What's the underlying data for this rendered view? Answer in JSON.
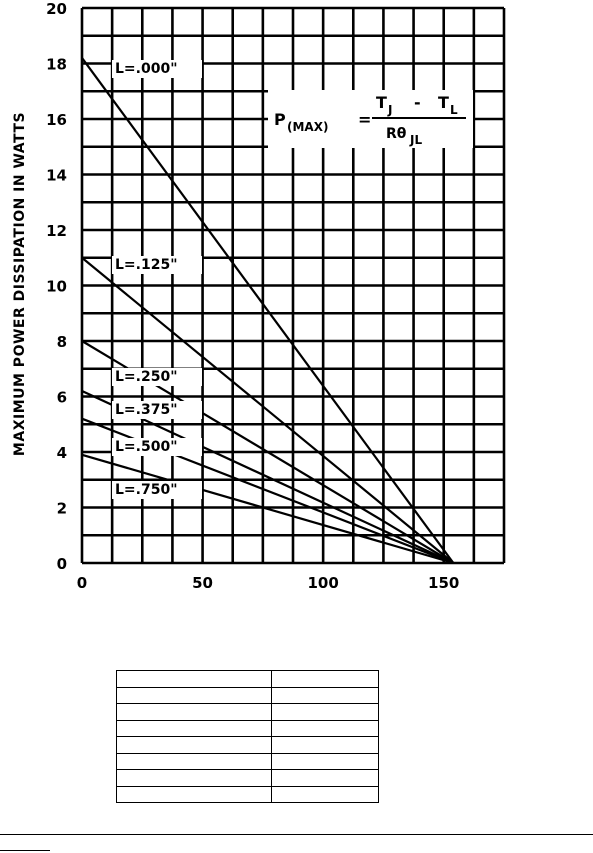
{
  "chart_data": {
    "type": "line",
    "title": "",
    "xlabel": "",
    "ylabel": "MAXIMUM POWER DISSIPATION IN WATTS",
    "xlim": [
      0,
      175
    ],
    "ylim": [
      0,
      20
    ],
    "x_ticks": [
      "0",
      "50",
      "100",
      "150"
    ],
    "y_ticks": [
      "0",
      "2",
      "4",
      "6",
      "8",
      "10",
      "12",
      "14",
      "16",
      "18",
      "20"
    ],
    "grid": true,
    "series": [
      {
        "name": "L=.000\"",
        "x": [
          0,
          154
        ],
        "y": [
          18.2,
          0
        ]
      },
      {
        "name": "L=.125\"",
        "x": [
          0,
          154
        ],
        "y": [
          11.0,
          0
        ]
      },
      {
        "name": "L=.250\"",
        "x": [
          0,
          154
        ],
        "y": [
          8.0,
          0
        ]
      },
      {
        "name": "L=.375\"",
        "x": [
          0,
          154
        ],
        "y": [
          6.2,
          0
        ]
      },
      {
        "name": "L=.500\"",
        "x": [
          0,
          154
        ],
        "y": [
          5.2,
          0
        ]
      },
      {
        "name": "L=.750\"",
        "x": [
          0,
          154
        ],
        "y": [
          3.9,
          0
        ]
      }
    ],
    "annotations": [
      {
        "text": "P(MAX) = (TJ - TL) / RθJL"
      }
    ],
    "formula": {
      "lhs_main": "P",
      "lhs_sub": "(MAX)",
      "eq": "=",
      "num_a": "T",
      "num_a_sub": "J",
      "minus": "-",
      "num_b": "T",
      "num_b_sub": "L",
      "den": "Rθ",
      "den_sub": "JL"
    }
  },
  "table": {
    "rows": [
      [
        "",
        ""
      ],
      [
        "",
        ""
      ],
      [
        "",
        ""
      ],
      [
        "",
        ""
      ],
      [
        "",
        ""
      ],
      [
        "",
        ""
      ],
      [
        "",
        ""
      ],
      [
        "",
        ""
      ]
    ]
  }
}
